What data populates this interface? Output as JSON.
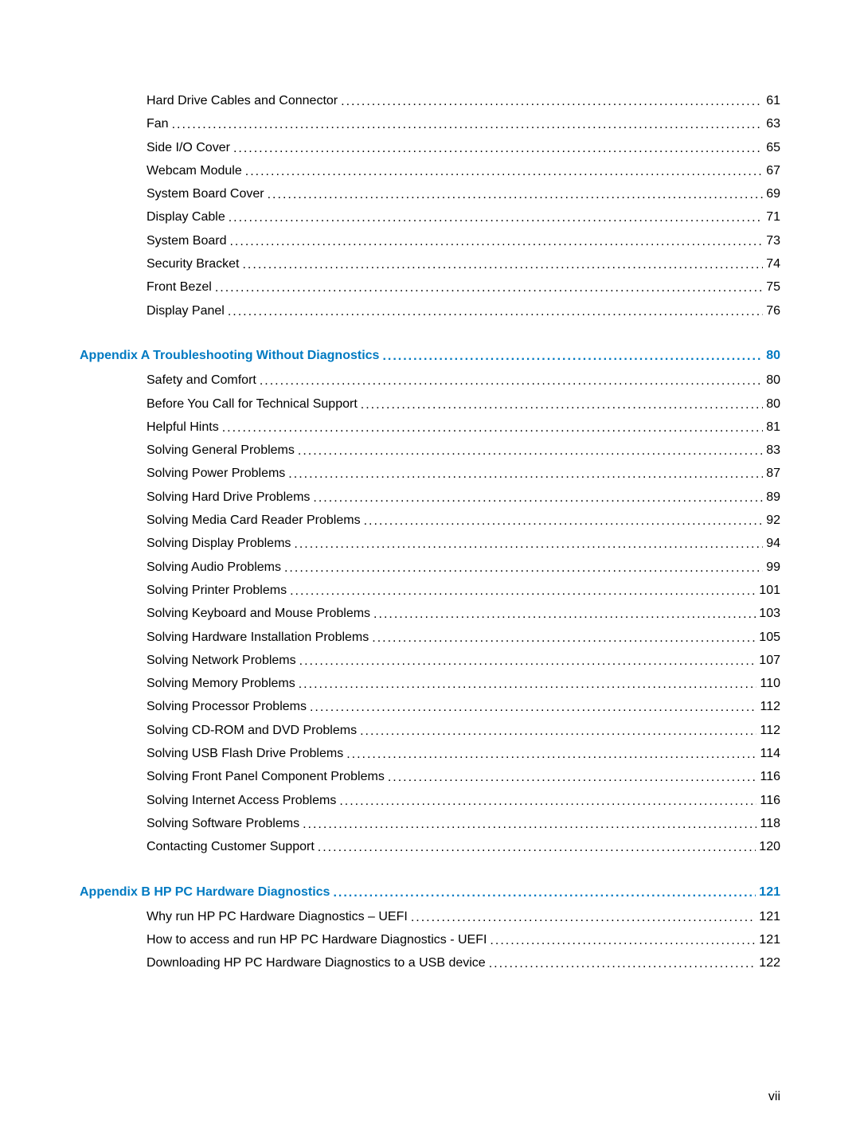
{
  "colors": {
    "link": "#007ac2",
    "text": "#000000",
    "background": "#ffffff"
  },
  "typography": {
    "font_family": "Arial",
    "font_size": 16,
    "line_height": 1.55
  },
  "page_label": "vii",
  "sections": [
    {
      "entries": [
        {
          "label": "Hard Drive Cables and Connector",
          "page": "61",
          "indent": 1
        },
        {
          "label": "Fan",
          "page": "63",
          "indent": 1
        },
        {
          "label": "Side I/O Cover",
          "page": "65",
          "indent": 1
        },
        {
          "label": "Webcam Module",
          "page": "67",
          "indent": 1
        },
        {
          "label": "System Board Cover",
          "page": "69",
          "indent": 1
        },
        {
          "label": "Display Cable",
          "page": "71",
          "indent": 1
        },
        {
          "label": "System Board",
          "page": "73",
          "indent": 1
        },
        {
          "label": "Security Bracket",
          "page": "74",
          "indent": 1
        },
        {
          "label": "Front Bezel",
          "page": "75",
          "indent": 1
        },
        {
          "label": "Display Panel",
          "page": "76",
          "indent": 1
        }
      ]
    },
    {
      "heading": {
        "label": "Appendix A   Troubleshooting Without Diagnostics",
        "page": "80"
      },
      "entries": [
        {
          "label": "Safety and Comfort",
          "page": "80",
          "indent": 1
        },
        {
          "label": "Before You Call for Technical Support",
          "page": "80",
          "indent": 1
        },
        {
          "label": "Helpful Hints",
          "page": "81",
          "indent": 1
        },
        {
          "label": "Solving General Problems",
          "page": "83",
          "indent": 1
        },
        {
          "label": "Solving Power Problems",
          "page": "87",
          "indent": 1
        },
        {
          "label": "Solving Hard Drive Problems",
          "page": "89",
          "indent": 1
        },
        {
          "label": "Solving Media Card Reader Problems",
          "page": "92",
          "indent": 1
        },
        {
          "label": "Solving Display Problems",
          "page": "94",
          "indent": 1
        },
        {
          "label": "Solving Audio Problems",
          "page": "99",
          "indent": 1
        },
        {
          "label": "Solving Printer Problems",
          "page": "101",
          "indent": 1
        },
        {
          "label": "Solving Keyboard and Mouse Problems",
          "page": "103",
          "indent": 1
        },
        {
          "label": "Solving Hardware Installation Problems",
          "page": "105",
          "indent": 1
        },
        {
          "label": "Solving Network Problems",
          "page": "107",
          "indent": 1
        },
        {
          "label": "Solving Memory Problems",
          "page": "110",
          "indent": 1
        },
        {
          "label": "Solving Processor Problems",
          "page": "112",
          "indent": 1
        },
        {
          "label": "Solving CD-ROM and DVD Problems",
          "page": "112",
          "indent": 1
        },
        {
          "label": "Solving USB Flash Drive Problems",
          "page": "114",
          "indent": 1
        },
        {
          "label": "Solving Front Panel Component Problems",
          "page": "116",
          "indent": 1
        },
        {
          "label": "Solving Internet Access Problems",
          "page": "116",
          "indent": 1
        },
        {
          "label": "Solving Software Problems",
          "page": "118",
          "indent": 1
        },
        {
          "label": "Contacting Customer Support",
          "page": "120",
          "indent": 1
        }
      ]
    },
    {
      "heading": {
        "label": "Appendix B   HP PC Hardware Diagnostics",
        "page": "121"
      },
      "entries": [
        {
          "label": "Why run HP PC Hardware Diagnostics – UEFI",
          "page": "121",
          "indent": 1
        },
        {
          "label": "How to access and run HP PC Hardware Diagnostics - UEFI",
          "page": "121",
          "indent": 1
        },
        {
          "label": "Downloading HP PC Hardware Diagnostics to a USB device",
          "page": "122",
          "indent": 1
        }
      ]
    }
  ]
}
